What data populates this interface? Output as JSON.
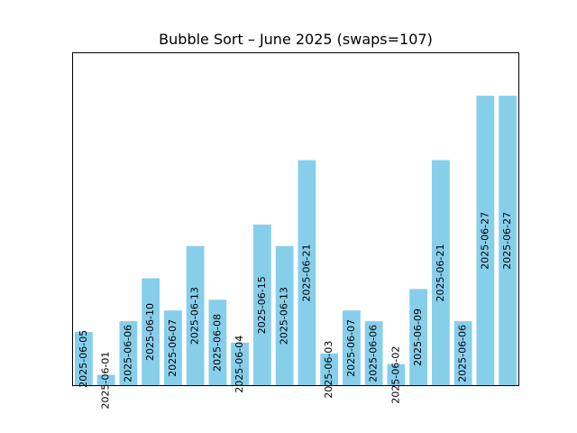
{
  "chart_data": {
    "type": "bar",
    "title": "Bubble Sort – June 2025 (swaps=107)",
    "xlabel": "",
    "ylabel": "",
    "ylim": [
      0,
      31
    ],
    "grid": false,
    "x_ticks_visible": false,
    "y_ticks_visible": false,
    "bar_color": "#87CEEB",
    "categories": [
      "2025-06-05",
      "2025-06-01",
      "2025-06-06",
      "2025-06-10",
      "2025-06-07",
      "2025-06-13",
      "2025-06-08",
      "2025-06-04",
      "2025-06-15",
      "2025-06-13",
      "2025-06-21",
      "2025-06-03",
      "2025-06-07",
      "2025-06-06",
      "2025-06-02",
      "2025-06-09",
      "2025-06-21",
      "2025-06-06",
      "2025-06-27",
      "2025-06-27"
    ],
    "values": [
      5,
      1,
      6,
      10,
      7,
      13,
      8,
      4,
      15,
      13,
      21,
      3,
      7,
      6,
      2,
      9,
      21,
      6,
      27,
      27
    ]
  }
}
